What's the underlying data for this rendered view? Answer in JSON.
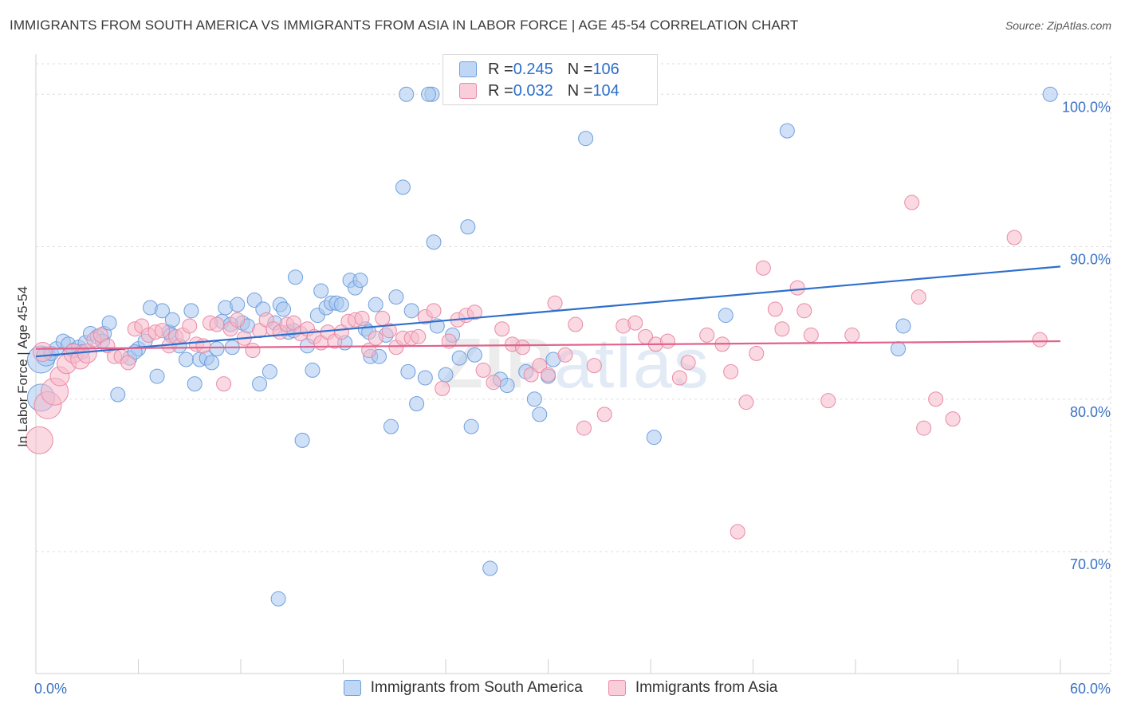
{
  "title": "IMMIGRANTS FROM SOUTH AMERICA VS IMMIGRANTS FROM ASIA IN LABOR FORCE | AGE 45-54 CORRELATION CHART",
  "source": "Source: ZipAtlas.com",
  "watermark": {
    "zip": "ZIP",
    "atlas": "atlas"
  },
  "colors": {
    "blue_fill": "#a9c8f0",
    "blue_stroke": "#6f9fdc",
    "blue_line": "#2f6fcc",
    "pink_fill": "#f6b9cb",
    "pink_stroke": "#e98aa6",
    "pink_line": "#e0628c",
    "tick_label": "#3a72c4",
    "grid": "#dddddd"
  },
  "legend": {
    "rows": [
      {
        "r_label": "R = ",
        "r_value": "0.245",
        "n_label": "N = ",
        "n_value": "106",
        "color": "#a9c8f0"
      },
      {
        "r_label": "R = ",
        "r_value": "0.032",
        "n_label": "N = ",
        "n_value": "104",
        "color": "#f6b9cb"
      }
    ]
  },
  "bottom_legend": [
    "Immigrants from South America",
    "Immigrants from Asia"
  ],
  "chart_data": {
    "type": "scatter",
    "title": "IMMIGRANTS FROM SOUTH AMERICA VS IMMIGRANTS FROM ASIA IN LABOR FORCE | AGE 45-54 CORRELATION CHART",
    "xlabel": "",
    "ylabel": "In Labor Force | Age 45-54",
    "xlim": [
      0,
      60
    ],
    "ylim": [
      62,
      102
    ],
    "x_tick_labels": [
      "0.0%",
      "60.0%"
    ],
    "y_ticks": [
      70,
      80,
      90,
      100
    ],
    "y_tick_labels": [
      "70.0%",
      "80.0%",
      "90.0%",
      "100.0%"
    ],
    "grid": true,
    "legend_position": "top-center",
    "series": [
      {
        "name": "Immigrants from South America",
        "color": "#a9c8f0",
        "r": 0.245,
        "n": 106,
        "trend": {
          "x": [
            0,
            60
          ],
          "y": [
            82.8,
            88.7
          ]
        },
        "points": [
          [
            0.3,
            82.6,
            3
          ],
          [
            0.3,
            80.1,
            3
          ],
          [
            0.6,
            82.8,
            2
          ],
          [
            0.9,
            83.0,
            1
          ],
          [
            1.2,
            83.3,
            1
          ],
          [
            1.6,
            83.8,
            1
          ],
          [
            1.9,
            83.6,
            1
          ],
          [
            2.2,
            83.2,
            1
          ],
          [
            2.5,
            83.4,
            1
          ],
          [
            2.9,
            83.7,
            1
          ],
          [
            3.2,
            84.3,
            1
          ],
          [
            3.6,
            84.1,
            1
          ],
          [
            4.0,
            84.3,
            1
          ],
          [
            4.3,
            85.0,
            1
          ],
          [
            4.8,
            80.3,
            1
          ],
          [
            5.5,
            82.7,
            1
          ],
          [
            6.0,
            83.3,
            1
          ],
          [
            6.4,
            83.8,
            1
          ],
          [
            6.7,
            86.0,
            1
          ],
          [
            7.1,
            81.5,
            1
          ],
          [
            7.4,
            85.8,
            1
          ],
          [
            7.8,
            84.4,
            1
          ],
          [
            8.0,
            85.2,
            1
          ],
          [
            8.4,
            83.5,
            1
          ],
          [
            8.8,
            82.6,
            1
          ],
          [
            9.1,
            85.8,
            1
          ],
          [
            9.3,
            81.0,
            1
          ],
          [
            9.6,
            82.6,
            1
          ],
          [
            10.0,
            82.7,
            1
          ],
          [
            10.3,
            82.4,
            1
          ],
          [
            10.6,
            83.3,
            1
          ],
          [
            10.9,
            85.1,
            1
          ],
          [
            11.1,
            86.0,
            1
          ],
          [
            11.5,
            83.4,
            1
          ],
          [
            11.8,
            86.2,
            1
          ],
          [
            12.1,
            85.0,
            1
          ],
          [
            12.4,
            84.8,
            1
          ],
          [
            12.8,
            86.5,
            1
          ],
          [
            13.1,
            81.0,
            1
          ],
          [
            13.3,
            85.9,
            1
          ],
          [
            13.7,
            81.8,
            1
          ],
          [
            14.0,
            85.0,
            1
          ],
          [
            14.3,
            86.2,
            1
          ],
          [
            14.5,
            85.9,
            1
          ],
          [
            14.8,
            84.4,
            1
          ],
          [
            15.1,
            84.5,
            1
          ],
          [
            15.2,
            88.0,
            1
          ],
          [
            15.6,
            77.3,
            1
          ],
          [
            15.9,
            83.5,
            1
          ],
          [
            16.2,
            81.9,
            1
          ],
          [
            16.5,
            85.5,
            1
          ],
          [
            16.7,
            87.1,
            1
          ],
          [
            17.0,
            86.0,
            1
          ],
          [
            17.3,
            86.3,
            1
          ],
          [
            17.6,
            86.3,
            1
          ],
          [
            17.9,
            86.2,
            1
          ],
          [
            18.1,
            83.7,
            1
          ],
          [
            18.4,
            87.8,
            1
          ],
          [
            18.7,
            87.3,
            1
          ],
          [
            19.0,
            87.8,
            1
          ],
          [
            19.3,
            84.6,
            1
          ],
          [
            19.6,
            82.8,
            1
          ],
          [
            19.9,
            86.2,
            1
          ],
          [
            20.1,
            82.8,
            1
          ],
          [
            20.5,
            84.2,
            1
          ],
          [
            20.8,
            78.2,
            1
          ],
          [
            21.1,
            86.7,
            1
          ],
          [
            21.5,
            93.9,
            1
          ],
          [
            21.8,
            81.8,
            1
          ],
          [
            22.0,
            85.8,
            1
          ],
          [
            22.3,
            79.7,
            1
          ],
          [
            22.8,
            81.4,
            1
          ],
          [
            23.3,
            90.3,
            1
          ],
          [
            23.5,
            84.8,
            1
          ],
          [
            24.0,
            81.6,
            1
          ],
          [
            24.4,
            84.2,
            1
          ],
          [
            24.8,
            82.7,
            1
          ],
          [
            25.3,
            91.3,
            1
          ],
          [
            25.7,
            82.9,
            1
          ],
          [
            26.6,
            68.9,
            1
          ],
          [
            27.2,
            81.3,
            1
          ],
          [
            27.6,
            80.9,
            1
          ],
          [
            28.7,
            81.8,
            1
          ],
          [
            29.2,
            80.0,
            1
          ],
          [
            29.5,
            79.0,
            1
          ],
          [
            30.0,
            81.5,
            1
          ],
          [
            30.3,
            82.6,
            1
          ],
          [
            32.2,
            97.1,
            1
          ],
          [
            36.2,
            77.5,
            1
          ],
          [
            40.4,
            85.5,
            1
          ],
          [
            44.0,
            97.6,
            1
          ],
          [
            50.5,
            83.3,
            1
          ],
          [
            50.8,
            84.8,
            1
          ],
          [
            59.4,
            100.0,
            1
          ],
          [
            21.7,
            100.0,
            1
          ],
          [
            23.2,
            100.0,
            1
          ],
          [
            35.6,
            100.0,
            1
          ],
          [
            14.2,
            66.9,
            1
          ],
          [
            25.5,
            78.2,
            1
          ],
          [
            23.0,
            100.0,
            1
          ],
          [
            7.9,
            84.2,
            1
          ],
          [
            19.5,
            84.4,
            1
          ],
          [
            3.9,
            83.8,
            1
          ],
          [
            2.7,
            83.1,
            1
          ],
          [
            5.8,
            83.1,
            1
          ],
          [
            11.4,
            84.9,
            1
          ]
        ]
      },
      {
        "name": "Immigrants from Asia",
        "color": "#f6b9cb",
        "r": 0.032,
        "n": 104,
        "trend": {
          "x": [
            0,
            60
          ],
          "y": [
            83.3,
            83.8
          ]
        },
        "points": [
          [
            0.2,
            77.3,
            3
          ],
          [
            0.4,
            83.1,
            2
          ],
          [
            0.7,
            79.6,
            3
          ],
          [
            1.1,
            80.5,
            3
          ],
          [
            1.4,
            81.5,
            2
          ],
          [
            1.8,
            82.3,
            2
          ],
          [
            2.2,
            83.0,
            2
          ],
          [
            2.6,
            82.6,
            2
          ],
          [
            3.0,
            83.0,
            2
          ],
          [
            3.4,
            83.9,
            1
          ],
          [
            3.8,
            84.2,
            1
          ],
          [
            4.2,
            83.5,
            1
          ],
          [
            4.6,
            82.8,
            1
          ],
          [
            5.0,
            82.8,
            1
          ],
          [
            5.4,
            82.4,
            1
          ],
          [
            5.8,
            84.6,
            1
          ],
          [
            6.2,
            84.8,
            1
          ],
          [
            6.6,
            84.2,
            1
          ],
          [
            7.0,
            84.4,
            1
          ],
          [
            7.4,
            84.5,
            1
          ],
          [
            7.8,
            83.5,
            1
          ],
          [
            8.2,
            84.1,
            1
          ],
          [
            8.6,
            84.2,
            1
          ],
          [
            9.0,
            84.8,
            1
          ],
          [
            9.4,
            83.6,
            1
          ],
          [
            9.8,
            83.5,
            1
          ],
          [
            10.2,
            85.0,
            1
          ],
          [
            10.6,
            84.9,
            1
          ],
          [
            11.0,
            81.0,
            1
          ],
          [
            11.4,
            84.6,
            1
          ],
          [
            11.8,
            85.2,
            1
          ],
          [
            12.2,
            84.0,
            1
          ],
          [
            12.7,
            83.2,
            1
          ],
          [
            13.1,
            84.5,
            1
          ],
          [
            13.5,
            85.2,
            1
          ],
          [
            13.9,
            84.6,
            1
          ],
          [
            14.3,
            84.4,
            1
          ],
          [
            14.7,
            84.9,
            1
          ],
          [
            15.1,
            85.0,
            1
          ],
          [
            15.5,
            84.3,
            1
          ],
          [
            15.9,
            84.6,
            1
          ],
          [
            16.3,
            84.1,
            1
          ],
          [
            16.7,
            83.7,
            1
          ],
          [
            17.1,
            84.4,
            1
          ],
          [
            17.5,
            83.8,
            1
          ],
          [
            17.9,
            84.4,
            1
          ],
          [
            18.3,
            85.1,
            1
          ],
          [
            18.7,
            85.2,
            1
          ],
          [
            19.1,
            85.3,
            1
          ],
          [
            19.5,
            83.2,
            1
          ],
          [
            19.9,
            84.0,
            1
          ],
          [
            20.3,
            85.3,
            1
          ],
          [
            20.7,
            84.5,
            1
          ],
          [
            21.1,
            83.4,
            1
          ],
          [
            21.5,
            84.0,
            1
          ],
          [
            22.0,
            84.0,
            1
          ],
          [
            22.4,
            84.1,
            1
          ],
          [
            22.8,
            85.4,
            1
          ],
          [
            23.3,
            85.8,
            1
          ],
          [
            23.8,
            80.7,
            1
          ],
          [
            24.2,
            83.8,
            1
          ],
          [
            24.7,
            85.2,
            1
          ],
          [
            25.2,
            85.5,
            1
          ],
          [
            25.7,
            85.7,
            1
          ],
          [
            26.2,
            81.9,
            1
          ],
          [
            26.8,
            81.1,
            1
          ],
          [
            27.3,
            84.6,
            1
          ],
          [
            27.9,
            83.6,
            1
          ],
          [
            28.5,
            83.4,
            1
          ],
          [
            29.0,
            81.6,
            1
          ],
          [
            29.5,
            82.2,
            1
          ],
          [
            30.0,
            81.6,
            1
          ],
          [
            30.4,
            86.3,
            1
          ],
          [
            31.0,
            82.9,
            1
          ],
          [
            31.6,
            84.9,
            1
          ],
          [
            32.1,
            78.1,
            1
          ],
          [
            32.7,
            82.2,
            1
          ],
          [
            33.3,
            79.0,
            1
          ],
          [
            34.4,
            84.8,
            1
          ],
          [
            35.1,
            85.0,
            1
          ],
          [
            35.7,
            84.1,
            1
          ],
          [
            36.3,
            83.6,
            1
          ],
          [
            37.0,
            83.8,
            1
          ],
          [
            37.7,
            81.4,
            1
          ],
          [
            38.2,
            82.4,
            1
          ],
          [
            39.3,
            84.2,
            1
          ],
          [
            40.2,
            83.6,
            1
          ],
          [
            40.7,
            81.8,
            1
          ],
          [
            41.1,
            71.3,
            1
          ],
          [
            41.6,
            79.8,
            1
          ],
          [
            42.2,
            83.0,
            1
          ],
          [
            42.6,
            88.6,
            1
          ],
          [
            43.3,
            85.9,
            1
          ],
          [
            43.7,
            84.6,
            1
          ],
          [
            44.6,
            87.3,
            1
          ],
          [
            45.0,
            85.8,
            1
          ],
          [
            45.4,
            84.2,
            1
          ],
          [
            46.4,
            79.9,
            1
          ],
          [
            47.8,
            84.2,
            1
          ],
          [
            51.3,
            92.9,
            1
          ],
          [
            51.7,
            86.7,
            1
          ],
          [
            52.0,
            78.1,
            1
          ],
          [
            52.7,
            80.0,
            1
          ],
          [
            53.7,
            78.7,
            1
          ],
          [
            57.3,
            90.6,
            1
          ],
          [
            58.8,
            83.9,
            1
          ]
        ]
      }
    ]
  }
}
